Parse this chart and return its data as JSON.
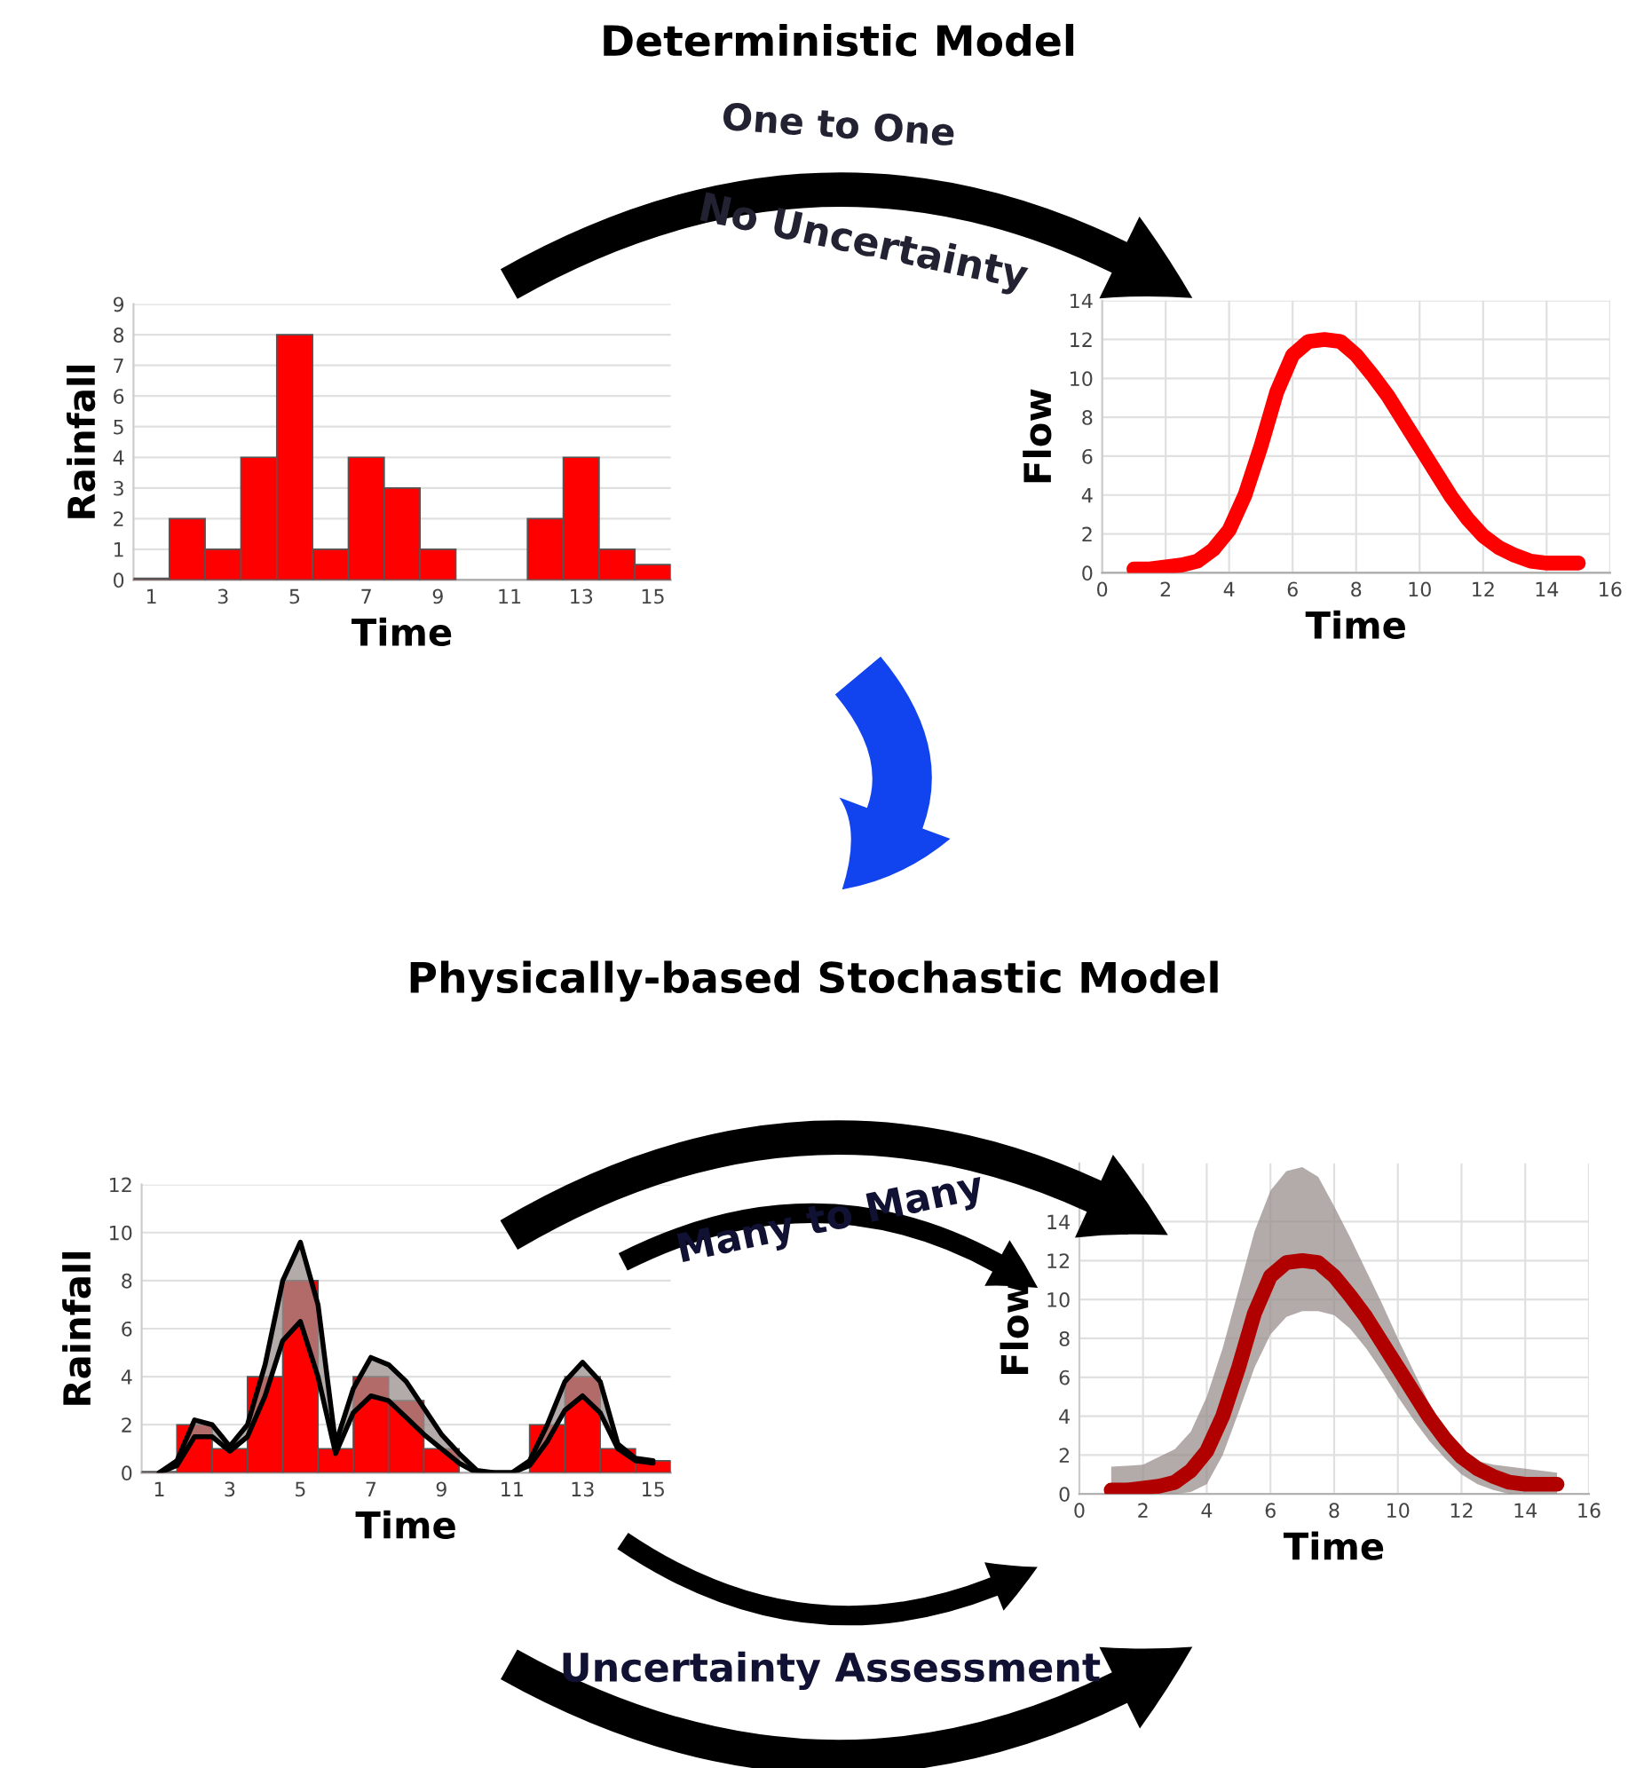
{
  "chart_data": [
    {
      "type": "bar",
      "xlabel": "Time",
      "ylabel": "Rainfall",
      "x": [
        1,
        2,
        3,
        4,
        5,
        6,
        7,
        8,
        9,
        10,
        11,
        12,
        13,
        14,
        15
      ],
      "xlim": [
        0.5,
        15.5
      ],
      "xticks": [
        1,
        3,
        5,
        7,
        9,
        11,
        13,
        15
      ],
      "ylim": [
        0,
        9
      ],
      "yticks": [
        0,
        1,
        2,
        3,
        4,
        5,
        6,
        7,
        8,
        9
      ],
      "grid": "y",
      "annotations": [
        "Deterministic Model",
        "One to One",
        "No Uncertainty"
      ],
      "series": [
        {
          "color": "#ff0000",
          "values": [
            0.05,
            2,
            1,
            4,
            8,
            1,
            4,
            3,
            1,
            0,
            0,
            2,
            4,
            1,
            0.5
          ]
        }
      ]
    },
    {
      "type": "line",
      "xlabel": "Time",
      "ylabel": "Flow",
      "xlim": [
        0,
        16
      ],
      "xticks": [
        0,
        2,
        4,
        6,
        8,
        10,
        12,
        14,
        16
      ],
      "ylim": [
        0,
        14
      ],
      "yticks": [
        0,
        2,
        4,
        6,
        8,
        10,
        12,
        14
      ],
      "grid": true,
      "series": [
        {
          "color": "#ff0000",
          "x": [
            1,
            1.5,
            2,
            2.5,
            3,
            3.5,
            4,
            4.5,
            5,
            5.5,
            6,
            6.5,
            7,
            7.5,
            8,
            8.5,
            9,
            9.5,
            10,
            10.5,
            11,
            11.5,
            12,
            12.5,
            13,
            13.5,
            14,
            14.5,
            15
          ],
          "values": [
            0.2,
            0.2,
            0.3,
            0.4,
            0.6,
            1.2,
            2.2,
            4,
            6.5,
            9.3,
            11.2,
            11.9,
            12,
            11.9,
            11.2,
            10.2,
            9.1,
            7.8,
            6.5,
            5.2,
            3.9,
            2.8,
            1.9,
            1.3,
            0.9,
            0.6,
            0.5,
            0.5,
            0.5
          ]
        }
      ]
    },
    {
      "type": "bar",
      "xlabel": "Time",
      "ylabel": "Rainfall",
      "x": [
        1,
        2,
        3,
        4,
        5,
        6,
        7,
        8,
        9,
        10,
        11,
        12,
        13,
        14,
        15
      ],
      "xlim": [
        0.5,
        15.5
      ],
      "xticks": [
        1,
        3,
        5,
        7,
        9,
        11,
        13,
        15
      ],
      "ylim": [
        0,
        12
      ],
      "yticks": [
        0,
        2,
        4,
        6,
        8,
        10,
        12
      ],
      "grid": "y",
      "annotations": [
        "Physically-based Stochastic Model",
        "Many to Many",
        "Uncertainty Assessment"
      ],
      "series": [
        {
          "color": "#ff0000",
          "values": [
            0.05,
            2,
            1,
            4,
            8,
            1,
            4,
            3,
            1,
            0,
            0,
            2,
            4,
            1,
            0.5
          ]
        },
        {
          "type": "line",
          "color": "#000000",
          "x": [
            1,
            1.5,
            2,
            2.5,
            3,
            3.5,
            4,
            4.5,
            5,
            5.5,
            6,
            6.5,
            7,
            7.5,
            8,
            8.5,
            9,
            9.5,
            10,
            10.5,
            11,
            11.5,
            12,
            12.5,
            13,
            13.5,
            14,
            14.5,
            15
          ],
          "values": [
            0,
            0.5,
            2.2,
            2,
            1.1,
            2,
            4.5,
            8,
            9.6,
            7,
            1.2,
            3.5,
            4.8,
            4.5,
            3.8,
            2.7,
            1.6,
            0.8,
            0.1,
            0,
            0,
            0.5,
            2,
            3.8,
            4.6,
            3.8,
            1.2,
            0.6,
            0.5
          ],
          "lower": [
            0,
            0.3,
            1.5,
            1.5,
            0.9,
            1.5,
            3.2,
            5.5,
            6.3,
            4,
            0.8,
            2.5,
            3.2,
            3,
            2.3,
            1.6,
            1,
            0.4,
            0,
            0,
            0,
            0.3,
            1.3,
            2.6,
            3.2,
            2.5,
            1,
            0.5,
            0.4
          ],
          "upper": [
            0,
            0.5,
            2.2,
            2,
            1.1,
            2,
            4.5,
            8,
            9.6,
            7,
            1.2,
            3.5,
            4.8,
            4.5,
            3.8,
            2.7,
            1.6,
            0.8,
            0.1,
            0,
            0,
            0.5,
            2,
            3.8,
            4.6,
            3.8,
            1.2,
            0.6,
            0.5
          ]
        },
        {
          "type": "line",
          "color": "#000000",
          "x": [
            1,
            1.5,
            2,
            2.5,
            3,
            3.5,
            4,
            4.5,
            5,
            5.5,
            6,
            6.5,
            7,
            7.5,
            8,
            8.5,
            9,
            9.5,
            10,
            10.5,
            11,
            11.5,
            12,
            12.5,
            13,
            13.5,
            14,
            14.5,
            15
          ],
          "values": [
            0,
            0.3,
            1.5,
            1.5,
            0.9,
            1.5,
            3.2,
            5.5,
            6.3,
            4,
            0.8,
            2.5,
            3.2,
            3,
            2.3,
            1.6,
            1,
            0.4,
            0,
            0,
            0,
            0.3,
            1.3,
            2.6,
            3.2,
            2.5,
            1,
            0.5,
            0.4
          ]
        }
      ]
    },
    {
      "type": "line",
      "xlabel": "Time",
      "ylabel": "Flow",
      "xlim": [
        0,
        16
      ],
      "xticks": [
        0,
        2,
        4,
        6,
        8,
        10,
        12,
        14,
        16
      ],
      "ylim": [
        0,
        17
      ],
      "yticks": [
        0,
        2,
        4,
        6,
        8,
        10,
        12,
        14
      ],
      "grid": true,
      "series": [
        {
          "color": "#b00000",
          "x": [
            1,
            1.5,
            2,
            2.5,
            3,
            3.5,
            4,
            4.5,
            5,
            5.5,
            6,
            6.5,
            7,
            7.5,
            8,
            8.5,
            9,
            9.5,
            10,
            10.5,
            11,
            11.5,
            12,
            12.5,
            13,
            13.5,
            14,
            14.5,
            15
          ],
          "values": [
            0.2,
            0.2,
            0.3,
            0.4,
            0.6,
            1.2,
            2.2,
            4,
            6.5,
            9.3,
            11.2,
            11.9,
            12,
            11.9,
            11.2,
            10.2,
            9.1,
            7.8,
            6.5,
            5.2,
            3.9,
            2.8,
            1.9,
            1.3,
            0.9,
            0.6,
            0.5,
            0.5,
            0.5
          ],
          "lower": [
            0,
            0,
            0,
            0,
            0,
            0.1,
            0.5,
            2,
            4.2,
            6.5,
            8.2,
            9.1,
            9.4,
            9.4,
            9.2,
            8.5,
            7.5,
            6.3,
            5,
            3.8,
            2.7,
            1.8,
            1,
            0.5,
            0.2,
            0,
            0,
            0,
            0
          ],
          "upper": [
            1.4,
            1.45,
            1.5,
            1.9,
            2.3,
            3.2,
            5,
            7.5,
            10.5,
            13.5,
            15.6,
            16.6,
            16.8,
            16.3,
            14.8,
            13.2,
            11.5,
            9.8,
            8,
            6.3,
            4.6,
            3.3,
            2.3,
            1.7,
            1.5,
            1.4,
            1.3,
            1.2,
            1.1
          ]
        }
      ]
    }
  ]
}
